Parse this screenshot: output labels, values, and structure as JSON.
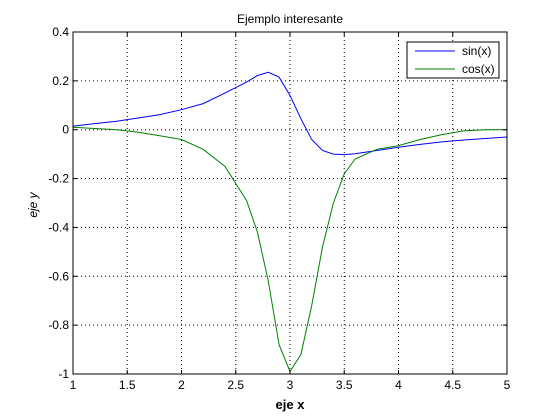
{
  "chart_data": {
    "type": "line",
    "title": "Ejemplo interesante",
    "xlabel": "eje x",
    "ylabel": "eje y",
    "xlim": [
      1,
      5
    ],
    "ylim": [
      -1,
      0.4
    ],
    "x_ticks": [
      "1",
      "1.5",
      "2",
      "2.5",
      "3",
      "3.5",
      "4",
      "4.5",
      "5"
    ],
    "y_ticks": [
      "-1",
      "-0.8",
      "-0.6",
      "-0.4",
      "-0.2",
      "0",
      "0.2",
      "0.4"
    ],
    "grid": true,
    "legend_position": "top-right",
    "x": [
      1.0,
      1.2,
      1.4,
      1.6,
      1.8,
      2.0,
      2.2,
      2.4,
      2.6,
      2.7,
      2.8,
      2.9,
      3.0,
      3.1,
      3.2,
      3.3,
      3.4,
      3.5,
      3.6,
      3.8,
      4.0,
      4.2,
      4.4,
      4.6,
      4.8,
      5.0
    ],
    "series": [
      {
        "name": "sin(x)",
        "color": "#0000ff",
        "values": [
          0.015,
          0.025,
          0.035,
          0.048,
          0.062,
          0.082,
          0.107,
          0.15,
          0.195,
          0.222,
          0.235,
          0.215,
          0.14,
          0.045,
          -0.04,
          -0.085,
          -0.1,
          -0.102,
          -0.098,
          -0.085,
          -0.072,
          -0.06,
          -0.05,
          -0.042,
          -0.036,
          -0.03
        ]
      },
      {
        "name": "cos(x)",
        "color": "#008000",
        "values": [
          0.01,
          0.005,
          0.0,
          -0.01,
          -0.025,
          -0.04,
          -0.08,
          -0.15,
          -0.29,
          -0.42,
          -0.62,
          -0.88,
          -0.99,
          -0.92,
          -0.72,
          -0.48,
          -0.3,
          -0.18,
          -0.12,
          -0.08,
          -0.065,
          -0.04,
          -0.02,
          -0.005,
          0.0,
          0.0
        ]
      }
    ]
  }
}
